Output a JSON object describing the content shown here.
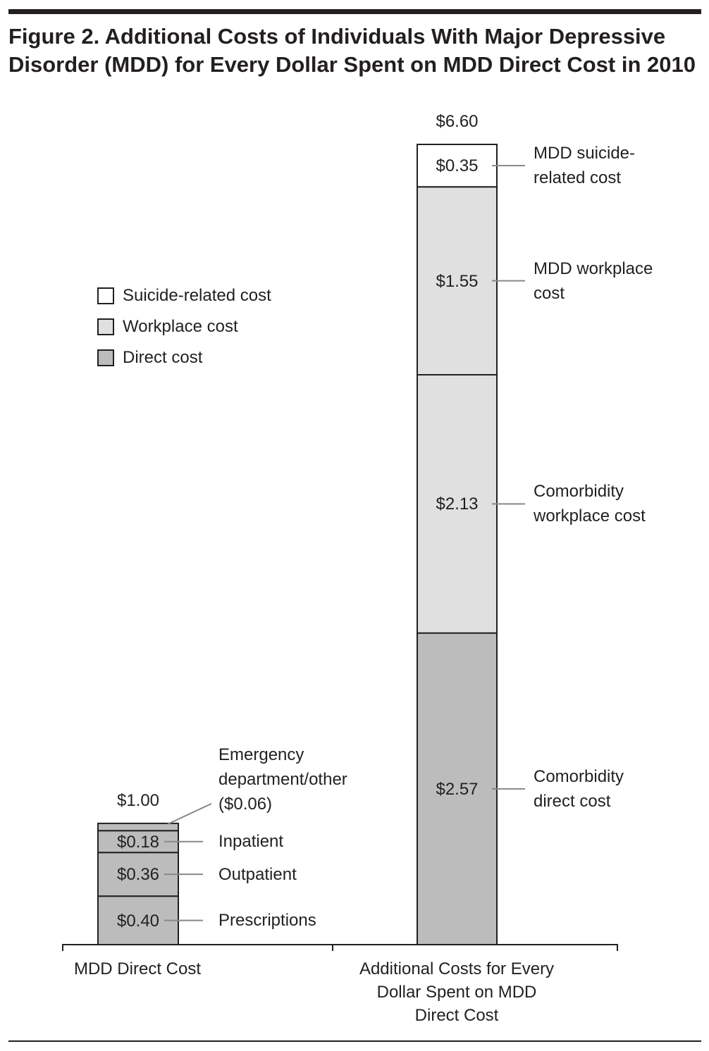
{
  "chart_data": {
    "type": "stacked-bar",
    "title": "Figure 2. Additional Costs of Individuals With Major Depressive Disorder (MDD) for Every Dollar Spent on MDD Direct Cost in 2010",
    "ylim": [
      0,
      6.6
    ],
    "legend": [
      {
        "name": "Suicide-related cost",
        "color": "#ffffff"
      },
      {
        "name": "Workplace cost",
        "color": "#e0e0e0"
      },
      {
        "name": "Direct cost",
        "color": "#bcbcbc"
      }
    ],
    "bars": [
      {
        "category": "MDD Direct Cost",
        "total": 1.0,
        "total_label": "$1.00",
        "segments": [
          {
            "name": "Prescriptions",
            "value": 0.4,
            "value_label": "$0.40",
            "color": "#bcbcbc"
          },
          {
            "name": "Outpatient",
            "value": 0.36,
            "value_label": "$0.36",
            "color": "#bcbcbc"
          },
          {
            "name": "Inpatient",
            "value": 0.18,
            "value_label": "$0.18",
            "color": "#bcbcbc"
          },
          {
            "name": "Emergency department/other ($0.06)",
            "value": 0.06,
            "color": "#bcbcbc"
          }
        ]
      },
      {
        "category": "Additional Costs for Every Dollar Spent on MDD Direct Cost",
        "total": 6.6,
        "total_label": "$6.60",
        "segments": [
          {
            "name": "Comorbidity direct cost",
            "value": 2.57,
            "value_label": "$2.57",
            "color": "#bcbcbc"
          },
          {
            "name": "Comorbidity workplace cost",
            "value": 2.13,
            "value_label": "$2.13",
            "color": "#e0e0e0"
          },
          {
            "name": "MDD workplace cost",
            "value": 1.55,
            "value_label": "$1.55",
            "color": "#e0e0e0"
          },
          {
            "name": "MDD suicide-related cost",
            "value": 0.35,
            "value_label": "$0.35",
            "color": "#ffffff"
          }
        ]
      }
    ]
  }
}
